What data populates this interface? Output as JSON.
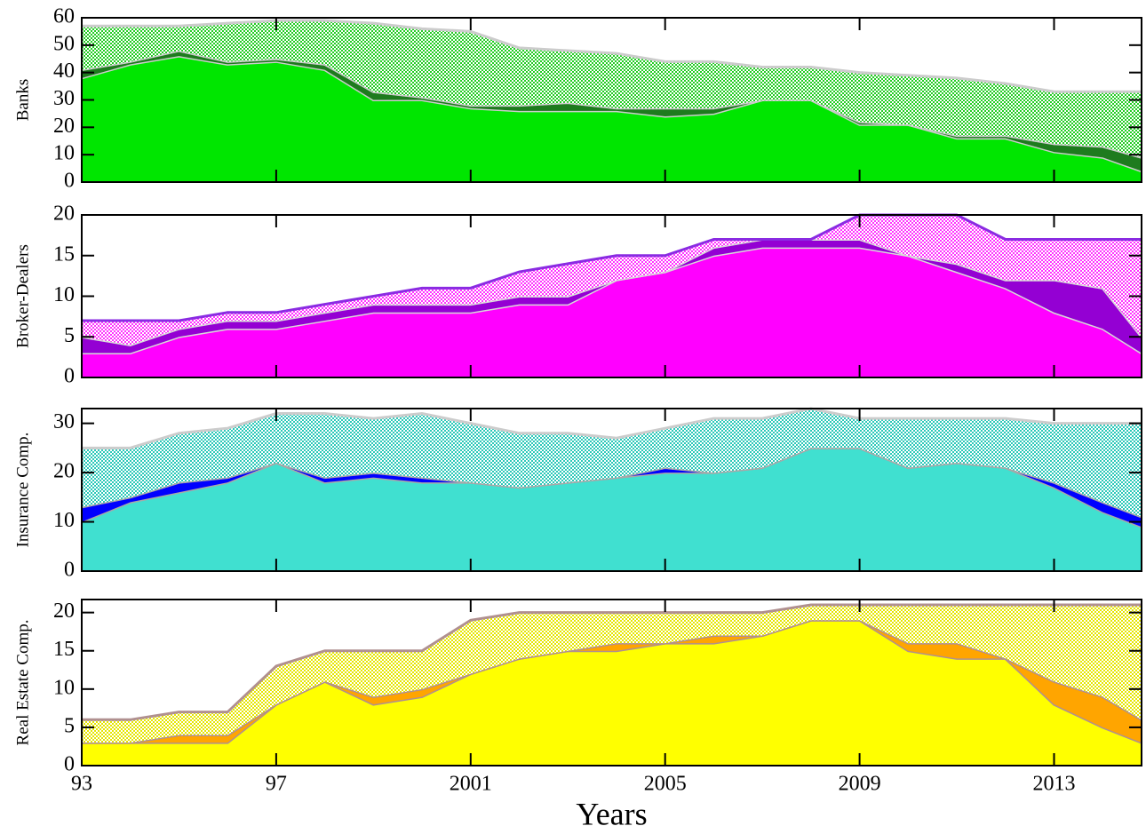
{
  "chart_data": [
    {
      "type": "stacked-area",
      "ylabel": "Banks",
      "xlim": [
        1993,
        2014.8
      ],
      "ylim": [
        0,
        60
      ],
      "yticks": [
        0,
        10,
        20,
        30,
        40,
        50,
        60
      ],
      "x": [
        1993,
        1994,
        1995,
        1996,
        1997,
        1998,
        1999,
        2000,
        2001,
        2002,
        2003,
        2004,
        2005,
        2006,
        2007,
        2008,
        2009,
        2010,
        2011,
        2012,
        2013,
        2014,
        2014.8
      ],
      "series": [
        {
          "color": "#00e600",
          "edge": "#cccccc",
          "pattern": false,
          "values": [
            38,
            43,
            46,
            43,
            44,
            41,
            30,
            30,
            27,
            26,
            26,
            26,
            24,
            25,
            30,
            30,
            21,
            21,
            16,
            16,
            11,
            9,
            4
          ]
        },
        {
          "color": "#1e7b1e",
          "edge": "#cccccc",
          "pattern": false,
          "values": [
            3,
            1,
            2,
            1,
            1,
            2,
            3,
            1,
            1,
            2,
            3,
            1,
            3,
            2,
            0,
            0,
            1,
            0,
            1,
            1,
            3,
            4,
            5
          ]
        },
        {
          "color": "#22cc22",
          "edge": "#cccccc",
          "pattern": true,
          "values": [
            16,
            13,
            9,
            14,
            14,
            16,
            25,
            25,
            27,
            21,
            19,
            20,
            17,
            17,
            12,
            12,
            18,
            18,
            21,
            19,
            19,
            20,
            24
          ]
        }
      ]
    },
    {
      "type": "stacked-area",
      "ylabel": "Broker-Dealers",
      "xlim": [
        1993,
        2014.8
      ],
      "ylim": [
        0,
        20
      ],
      "yticks": [
        0,
        5,
        10,
        15,
        20
      ],
      "x": [
        1993,
        1994,
        1995,
        1996,
        1997,
        1998,
        1999,
        2000,
        2001,
        2002,
        2003,
        2004,
        2005,
        2006,
        2007,
        2008,
        2009,
        2010,
        2011,
        2012,
        2013,
        2014,
        2014.8
      ],
      "series": [
        {
          "color": "#ff00ff",
          "edge": "#d8d8d8",
          "pattern": false,
          "values": [
            3,
            3,
            5,
            6,
            6,
            7,
            8,
            8,
            8,
            9,
            9,
            12,
            13,
            15,
            16,
            16,
            16,
            15,
            13,
            11,
            8,
            6,
            3
          ]
        },
        {
          "color": "#9400d3",
          "edge": "#d8d8d8",
          "pattern": false,
          "values": [
            2,
            1,
            1,
            1,
            1,
            1,
            1,
            1,
            1,
            1,
            1,
            0,
            0,
            1,
            1,
            1,
            1,
            0,
            1,
            1,
            4,
            5,
            2
          ]
        },
        {
          "color": "#ff33ff",
          "edge": "#8a2be2",
          "pattern": true,
          "values": [
            2,
            3,
            1,
            1,
            1,
            1,
            1,
            2,
            2,
            3,
            4,
            3,
            2,
            1,
            0,
            0,
            3,
            5,
            6,
            5,
            5,
            6,
            12
          ]
        }
      ]
    },
    {
      "type": "stacked-area",
      "ylabel": "Insurance Comp.",
      "xlim": [
        1993,
        2014.8
      ],
      "ylim": [
        0,
        33
      ],
      "yticks": [
        0,
        10,
        20,
        30
      ],
      "x": [
        1993,
        1994,
        1995,
        1996,
        1997,
        1998,
        1999,
        2000,
        2001,
        2002,
        2003,
        2004,
        2005,
        2006,
        2007,
        2008,
        2009,
        2010,
        2011,
        2012,
        2013,
        2014,
        2014.8
      ],
      "series": [
        {
          "color": "#40e0d0",
          "edge": "#a8a8a8",
          "pattern": false,
          "values": [
            10,
            14,
            16,
            18,
            22,
            18,
            19,
            18,
            18,
            17,
            18,
            19,
            20,
            20,
            21,
            25,
            25,
            21,
            22,
            21,
            17,
            12,
            9
          ]
        },
        {
          "color": "#0000ff",
          "edge": "#a8a8a8",
          "pattern": false,
          "values": [
            3,
            1,
            2,
            1,
            0,
            1,
            1,
            1,
            0,
            0,
            0,
            0,
            1,
            0,
            0,
            0,
            0,
            0,
            0,
            0,
            1,
            2,
            2
          ]
        },
        {
          "color": "#2ac8b8",
          "edge": "#cccccc",
          "pattern": true,
          "values": [
            12,
            10,
            10,
            10,
            10,
            13,
            11,
            13,
            12,
            11,
            10,
            8,
            8,
            11,
            10,
            8,
            6,
            10,
            9,
            10,
            12,
            16,
            19
          ]
        }
      ]
    },
    {
      "type": "stacked-area",
      "ylabel": "Real Estate Comp.",
      "xlabel": "Years",
      "xlim": [
        1993,
        2014.8
      ],
      "ylim": [
        0,
        21.7
      ],
      "yticks": [
        0,
        5,
        10,
        15,
        20
      ],
      "xticks": [
        {
          "value": 1993,
          "label": "93"
        },
        {
          "value": 1997,
          "label": "97"
        },
        2001,
        2005,
        2009,
        2013
      ],
      "x": [
        1993,
        1994,
        1995,
        1996,
        1997,
        1998,
        1999,
        2000,
        2001,
        2002,
        2003,
        2004,
        2005,
        2006,
        2007,
        2008,
        2009,
        2010,
        2011,
        2012,
        2013,
        2014,
        2014.8
      ],
      "series": [
        {
          "color": "#ffff00",
          "edge": "#b09090",
          "pattern": false,
          "values": [
            3,
            3,
            3,
            3,
            8,
            11,
            8,
            9,
            12,
            14,
            15,
            15,
            16,
            16,
            17,
            19,
            19,
            15,
            14,
            14,
            8,
            5,
            3
          ]
        },
        {
          "color": "#ffa500",
          "edge": "#b09090",
          "pattern": false,
          "values": [
            0,
            0,
            1,
            1,
            0,
            0,
            1,
            1,
            0,
            0,
            0,
            1,
            0,
            1,
            0,
            0,
            0,
            1,
            2,
            0,
            3,
            4,
            3
          ]
        },
        {
          "color": "#e6e600",
          "edge": "#b09090",
          "pattern": true,
          "values": [
            3,
            3,
            3,
            3,
            5,
            4,
            6,
            5,
            7,
            6,
            5,
            4,
            4,
            3,
            3,
            2,
            2,
            5,
            5,
            7,
            10,
            12,
            15
          ]
        }
      ]
    }
  ]
}
